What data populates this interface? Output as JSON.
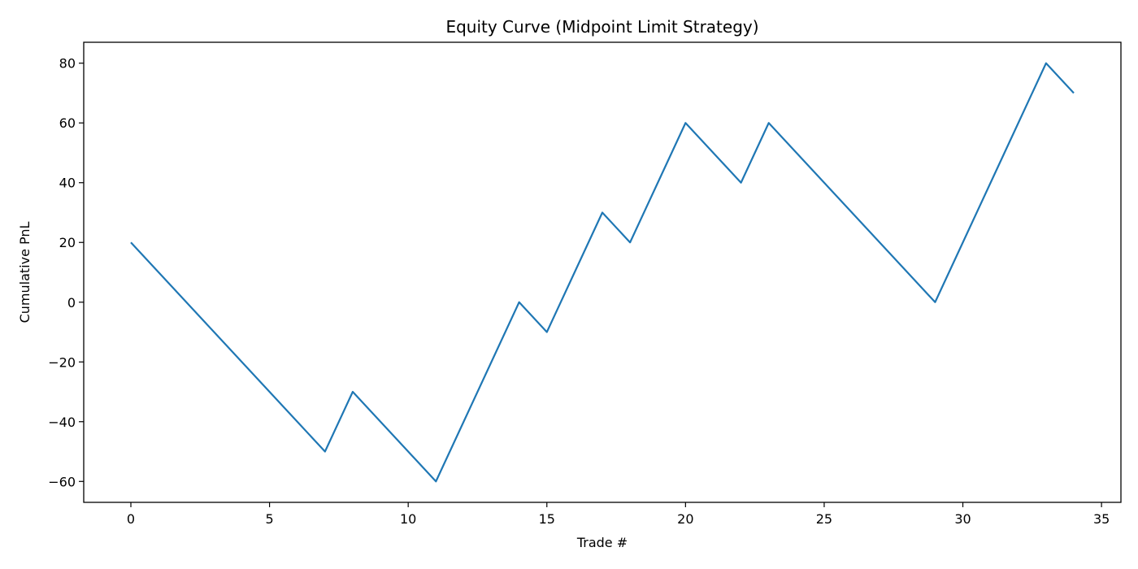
{
  "chart_data": {
    "type": "line",
    "title": "Equity Curve (Midpoint Limit Strategy)",
    "xlabel": "Trade #",
    "ylabel": "Cumulative PnL",
    "xlim": [
      -1.7,
      35.7
    ],
    "ylim": [
      -67,
      87
    ],
    "xticks": [
      0,
      5,
      10,
      15,
      20,
      25,
      30,
      35
    ],
    "yticks": [
      -60,
      -40,
      -20,
      0,
      20,
      40,
      60,
      80
    ],
    "xtick_labels": [
      "0",
      "5",
      "10",
      "15",
      "20",
      "25",
      "30",
      "35"
    ],
    "ytick_labels": [
      "−60",
      "−40",
      "−20",
      "0",
      "20",
      "40",
      "60",
      "80"
    ],
    "grid": false,
    "series": [
      {
        "color": "#1f77b4",
        "points": [
          [
            0,
            20
          ],
          [
            1,
            10
          ],
          [
            2,
            0
          ],
          [
            3,
            -10
          ],
          [
            4,
            -20
          ],
          [
            5,
            -30
          ],
          [
            6,
            -40
          ],
          [
            7,
            -50
          ],
          [
            8,
            -30
          ],
          [
            9,
            -40
          ],
          [
            10,
            -50
          ],
          [
            11,
            -60
          ],
          [
            12,
            -40
          ],
          [
            13,
            -20
          ],
          [
            14,
            0
          ],
          [
            15,
            -10
          ],
          [
            16,
            10
          ],
          [
            17,
            30
          ],
          [
            18,
            20
          ],
          [
            19,
            40
          ],
          [
            20,
            60
          ],
          [
            21,
            50
          ],
          [
            22,
            40
          ],
          [
            23,
            60
          ],
          [
            24,
            50
          ],
          [
            25,
            40
          ],
          [
            26,
            30
          ],
          [
            27,
            20
          ],
          [
            28,
            10
          ],
          [
            29,
            0
          ],
          [
            30,
            20
          ],
          [
            31,
            40
          ],
          [
            32,
            60
          ],
          [
            33,
            80
          ],
          [
            34,
            70
          ]
        ]
      }
    ]
  }
}
